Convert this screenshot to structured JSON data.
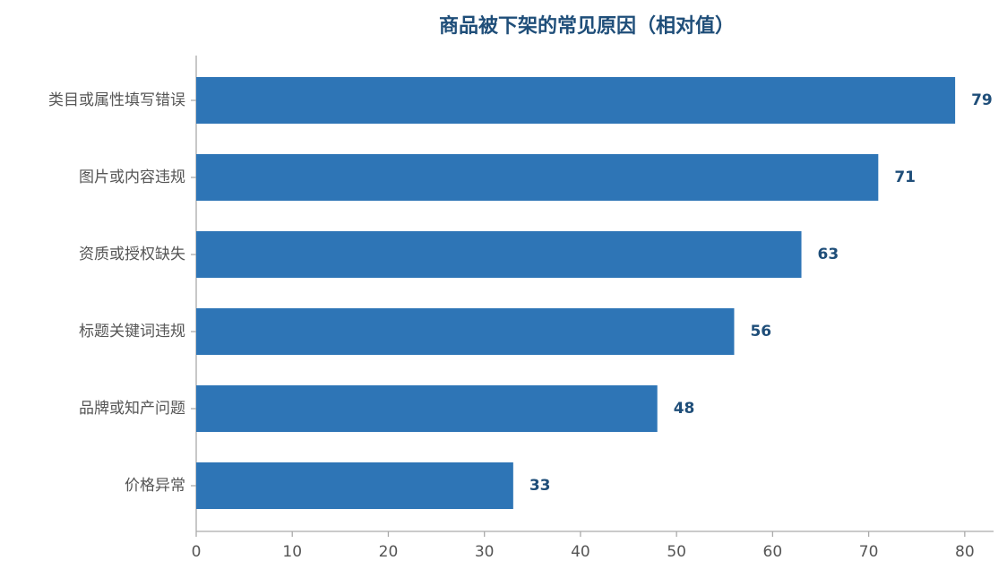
{
  "chart_data": {
    "type": "barh",
    "title": "商品被下架的常见原因（相对值）",
    "categories": [
      "类目或属性填写错误",
      "图片或内容违规",
      "资质或授权缺失",
      "标题关键词违规",
      "品牌或知产问题",
      "价格异常"
    ],
    "values": [
      79,
      71,
      63,
      56,
      48,
      33
    ],
    "color": "#2e75b6",
    "xlim": [
      0,
      83
    ],
    "xticks": [
      0,
      10,
      20,
      30,
      40,
      50,
      60,
      70,
      80
    ]
  }
}
